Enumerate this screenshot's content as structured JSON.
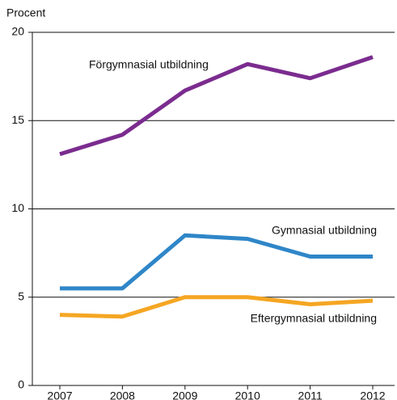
{
  "chart_data": {
    "type": "line",
    "y_label": "Procent",
    "categories": [
      "2007",
      "2008",
      "2009",
      "2010",
      "2011",
      "2012"
    ],
    "series": [
      {
        "name": "Förgymnasial utbildning",
        "color": "#7b2c8f",
        "values": [
          13.1,
          14.2,
          16.7,
          18.2,
          17.4,
          18.6
        ]
      },
      {
        "name": "Gymnasial utbildning",
        "color": "#2f86c8",
        "values": [
          5.5,
          5.5,
          8.5,
          8.3,
          7.3,
          7.3
        ]
      },
      {
        "name": "Eftergymnasial utbildning",
        "color": "#f5a623",
        "values": [
          4.0,
          3.9,
          5.0,
          5.0,
          4.6,
          4.8
        ]
      }
    ],
    "ylim": [
      0,
      20
    ],
    "yticks": [
      0,
      5,
      10,
      15,
      20
    ],
    "grid": true
  }
}
